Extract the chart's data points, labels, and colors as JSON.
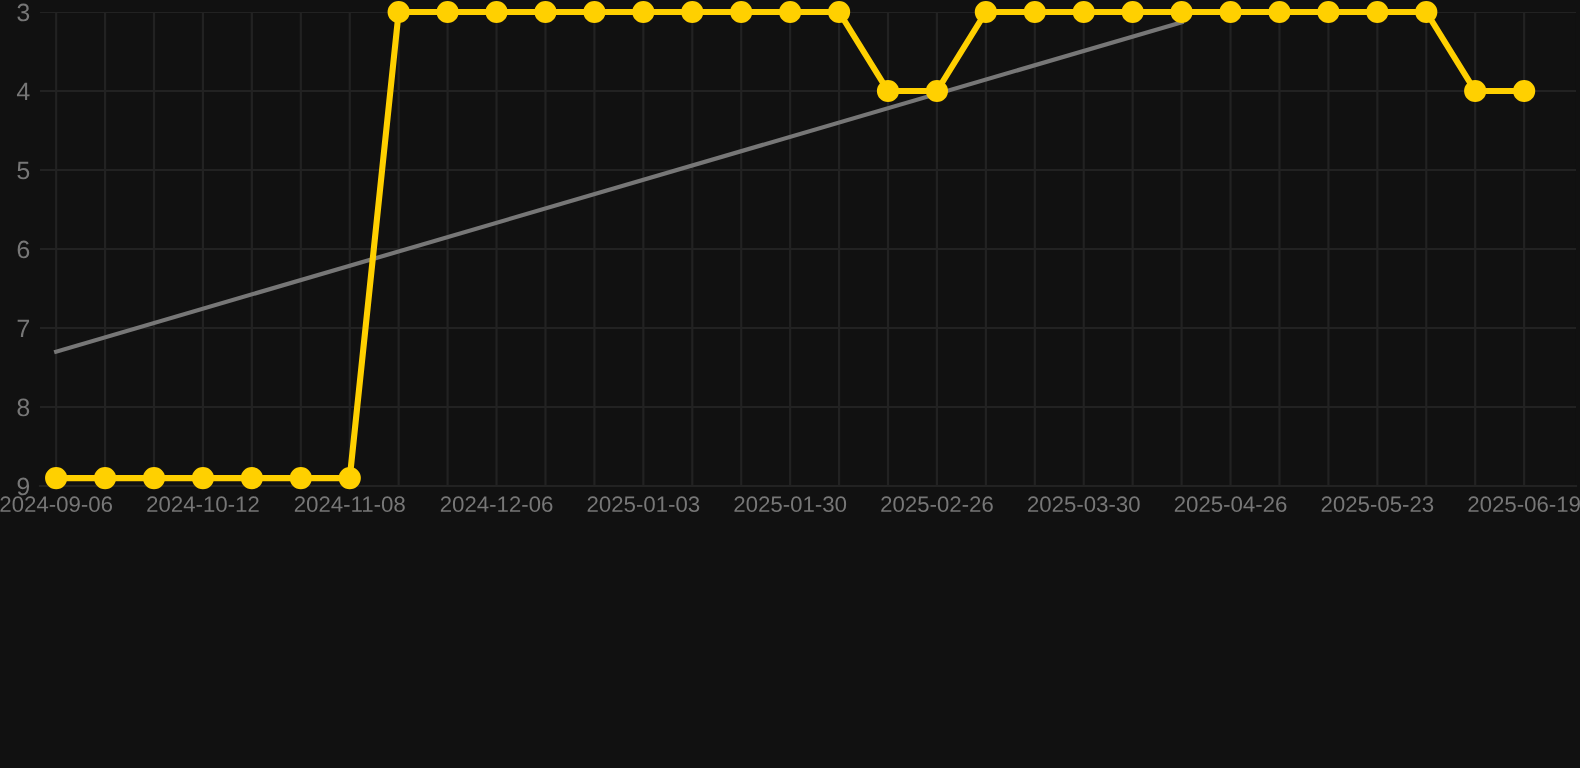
{
  "chart_data": {
    "type": "line",
    "categories": [
      "2024-09-06",
      null,
      null,
      "2024-10-12",
      null,
      null,
      "2024-11-08",
      null,
      null,
      "2024-12-06",
      null,
      null,
      "2025-01-03",
      null,
      null,
      "2025-01-30",
      null,
      null,
      "2025-02-26",
      null,
      null,
      "2025-03-30",
      null,
      null,
      "2025-04-26",
      null,
      null,
      "2025-05-23",
      null,
      null,
      "2025-06-19"
    ],
    "series": [
      {
        "color": "#ffd000",
        "marker": "circle",
        "values": [
          8.9,
          8.9,
          8.9,
          8.9,
          8.9,
          8.9,
          8.9,
          3,
          3,
          3,
          3,
          3,
          3,
          3,
          3,
          3,
          3,
          4,
          4,
          3,
          3,
          3,
          3,
          3,
          3,
          3,
          3,
          3,
          3,
          4,
          4
        ]
      },
      {
        "color": "#777777",
        "marker": "none",
        "values": [
          7.3,
          null,
          null,
          null,
          null,
          null,
          null,
          null,
          null,
          null,
          null,
          null,
          null,
          null,
          null,
          null,
          null,
          null,
          null,
          null,
          null,
          null,
          null,
          3.13,
          null,
          null,
          null,
          null,
          null,
          null,
          null
        ]
      }
    ],
    "ylim": [
      9,
      3
    ],
    "yticks": [
      3,
      4,
      5,
      6,
      7,
      8,
      9
    ],
    "grid": true
  }
}
